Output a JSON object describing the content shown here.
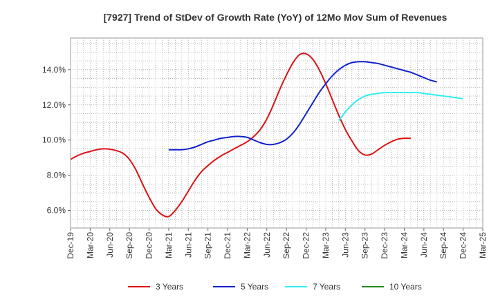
{
  "chart_data": {
    "type": "line",
    "title": "[7927]  Trend of StDev of Growth Rate (YoY) of 12Mo Mov Sum of Revenues",
    "xlabel": "",
    "ylabel": "",
    "ylim": [
      5.0,
      15.8
    ],
    "y_ticks": [
      6.0,
      8.0,
      10.0,
      12.0,
      14.0
    ],
    "y_tick_labels": [
      "6.0%",
      "8.0%",
      "10.0%",
      "12.0%",
      "14.0%"
    ],
    "x_tick_labels": [
      "Dec-19",
      "Mar-20",
      "Jun-20",
      "Sep-20",
      "Dec-20",
      "Mar-21",
      "Jun-21",
      "Sep-21",
      "Dec-21",
      "Mar-22",
      "Jun-22",
      "Sep-22",
      "Dec-22",
      "Mar-23",
      "Jun-23",
      "Sep-23",
      "Dec-23",
      "Mar-24",
      "Jun-24",
      "Sep-24",
      "Dec-24",
      "Mar-25"
    ],
    "grid": true,
    "legend_position": "bottom",
    "series": [
      {
        "name": "3 Years",
        "color": "#dd1111",
        "start_index": 0,
        "values": [
          8.9,
          9.1,
          9.25,
          9.35,
          9.45,
          9.5,
          9.48,
          9.4,
          9.25,
          8.9,
          8.3,
          7.5,
          6.75,
          6.1,
          5.75,
          5.65,
          6.0,
          6.5,
          7.1,
          7.7,
          8.2,
          8.55,
          8.85,
          9.1,
          9.3,
          9.5,
          9.7,
          9.9,
          10.2,
          10.6,
          11.2,
          12.0,
          12.9,
          13.7,
          14.4,
          14.85,
          14.9,
          14.6,
          14.0,
          13.2,
          12.3,
          11.4,
          10.6,
          9.95,
          9.4,
          9.15,
          9.2,
          9.45,
          9.7,
          9.9,
          10.05,
          10.1,
          10.1
        ]
      },
      {
        "name": "5 Years",
        "color": "#1122cc",
        "start_index": 15,
        "values": [
          9.45,
          9.45,
          9.45,
          9.5,
          9.6,
          9.75,
          9.9,
          10.0,
          10.1,
          10.15,
          10.2,
          10.2,
          10.15,
          10.0,
          9.85,
          9.75,
          9.75,
          9.85,
          10.05,
          10.4,
          10.9,
          11.5,
          12.1,
          12.7,
          13.2,
          13.65,
          14.0,
          14.25,
          14.4,
          14.45,
          14.45,
          14.4,
          14.35,
          14.25,
          14.15,
          14.05,
          13.95,
          13.85,
          13.7,
          13.55,
          13.4,
          13.3
        ]
      },
      {
        "name": "7 Years",
        "color": "#33eeee",
        "start_index": 41,
        "values": [
          11.1,
          11.6,
          12.0,
          12.3,
          12.5,
          12.6,
          12.65,
          12.7,
          12.7,
          12.7,
          12.7,
          12.7,
          12.7,
          12.65,
          12.6,
          12.55,
          12.5,
          12.45,
          12.4,
          12.35
        ]
      },
      {
        "name": "10 Years",
        "color": "#228822",
        "start_index": 0,
        "values": []
      }
    ]
  }
}
